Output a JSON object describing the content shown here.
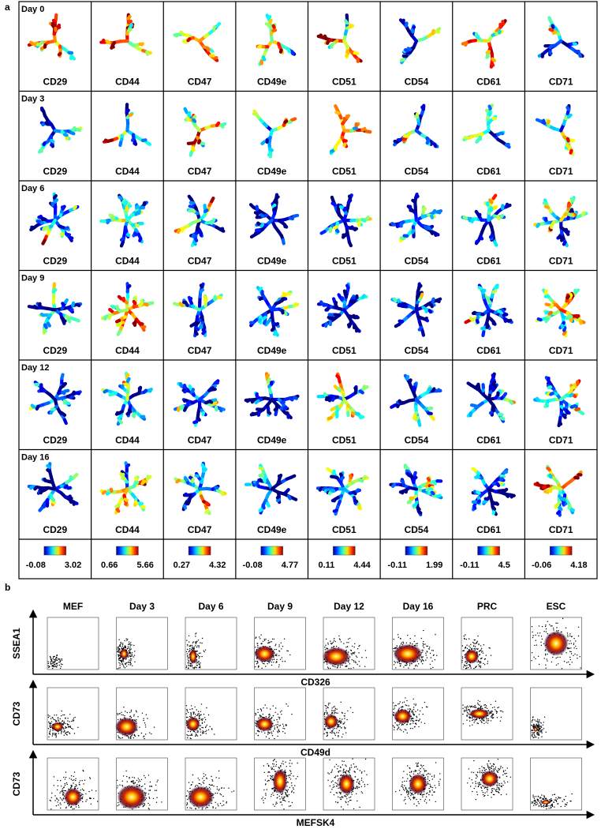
{
  "panel_a": {
    "label": "a",
    "days": [
      "Day 0",
      "Day 3",
      "Day 6",
      "Day 9",
      "Day 12",
      "Day 16"
    ],
    "markers": [
      "CD29",
      "CD44",
      "CD47",
      "CD49e",
      "CD51",
      "CD54",
      "CD61",
      "CD71"
    ],
    "colorbars": [
      {
        "min": -0.08,
        "max": 3.02
      },
      {
        "min": 0.66,
        "max": 5.66
      },
      {
        "min": 0.27,
        "max": 4.32
      },
      {
        "min": -0.08,
        "max": 4.77
      },
      {
        "min": 0.11,
        "max": 4.44
      },
      {
        "min": -0.11,
        "max": 1.99
      },
      {
        "min": -0.11,
        "max": 4.5
      },
      {
        "min": -0.06,
        "max": 4.18
      }
    ]
  },
  "panel_b": {
    "label": "b",
    "columns": [
      "MEF",
      "Day 3",
      "Day 6",
      "Day 9",
      "Day 12",
      "Day 16",
      "PRC",
      "ESC"
    ],
    "rows": [
      {
        "y_label": "SSEA1",
        "x_label": "CD326"
      },
      {
        "y_label": "CD73",
        "x_label": "CD49d"
      },
      {
        "y_label": "CD73",
        "x_label": "MEFSK4"
      }
    ]
  }
}
